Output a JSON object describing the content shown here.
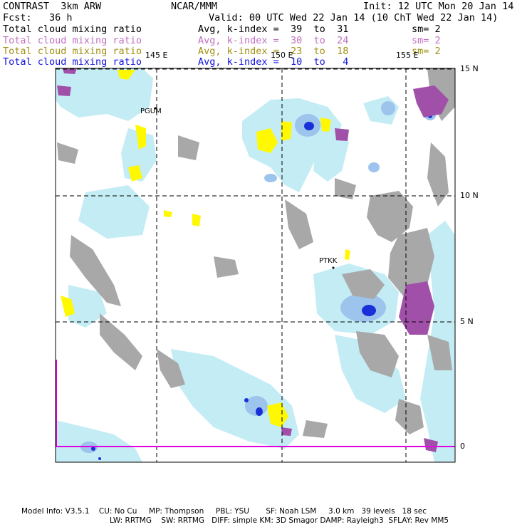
{
  "header": {
    "model_title": "CONTRAST  3km ARW",
    "center": "NCAR/MMM",
    "init": "Init: 12 UTC Mon 20 Jan 14",
    "forecast": "Fcst:   36 h",
    "valid": "Valid: 00 UTC Wed 22 Jan 14 (10 ChT Wed 22 Jan 14)"
  },
  "legend": [
    {
      "field": "Total cloud mixing ratio",
      "avg": "Avg, k-index =  39  to  31",
      "sm": "sm= 2",
      "color": "#000000"
    },
    {
      "field": "Total cloud mixing ratio",
      "avg": "Avg, k-index =  30  to  24",
      "sm": "sm= 2",
      "color": "#c070c0"
    },
    {
      "field": "Total cloud mixing ratio",
      "avg": "Avg, k-index =  23  to  18",
      "sm": "sm= 2",
      "color": "#a09010"
    },
    {
      "field": "Total cloud mixing ratio",
      "avg": "Avg, k-index =  10  to   4",
      "sm": "",
      "color": "#1010e0"
    }
  ],
  "map": {
    "lon_labels": [
      "145 E",
      "150 E",
      "155 E"
    ],
    "lat_labels": [
      "15 N",
      "10 N",
      "5 N",
      "0"
    ],
    "stations": [
      "PGUM",
      "PTKK"
    ],
    "colors": {
      "gray": "#a8a8a8",
      "light_blue": "#c4ecf4",
      "mid_blue": "#9cc4ec",
      "dark_blue": "#1830d8",
      "yellow": "#fff800",
      "magenta": "#a050a8",
      "boundary": "#e000e0"
    }
  },
  "footer": {
    "line1": "Model Info: V3.5.1    CU: No Cu     MP: Thompson     PBL: YSU       SF: Noah LSM     3.0 km   39 levels   18 sec",
    "line2": "LW: RRTMG    SW: RRTMG   DIFF: simple KM: 3D Smagor DAMP: Rayleigh3  SFLAY: Rev MM5"
  }
}
